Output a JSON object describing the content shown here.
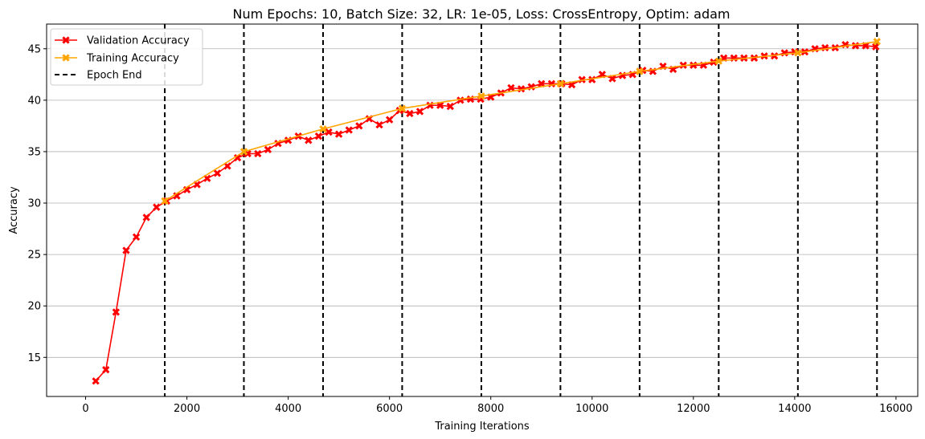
{
  "chart_data": {
    "type": "line",
    "title": "Num Epochs: 10, Batch Size: 32, LR: 1e-05, Loss: CrossEntropy, Optim: adam",
    "xlabel": "Training Iterations",
    "ylabel": "Accuracy",
    "xlim": [
      -770,
      16430
    ],
    "ylim": [
      11.2,
      47.4
    ],
    "xticks": [
      0,
      2000,
      4000,
      6000,
      8000,
      10000,
      12000,
      14000,
      16000
    ],
    "yticks": [
      15,
      20,
      25,
      30,
      35,
      40,
      45
    ],
    "grid": "y",
    "legend_position": "top-left",
    "series": [
      {
        "name": "Validation Accuracy",
        "color": "#ff0000",
        "marker": "x",
        "x": [
          200,
          400,
          600,
          800,
          1000,
          1200,
          1400,
          1600,
          1800,
          2000,
          2200,
          2400,
          2600,
          2800,
          3000,
          3200,
          3400,
          3600,
          3800,
          4000,
          4200,
          4400,
          4600,
          4800,
          5000,
          5200,
          5400,
          5600,
          5800,
          6000,
          6200,
          6400,
          6600,
          6800,
          7000,
          7200,
          7400,
          7600,
          7800,
          8000,
          8200,
          8400,
          8600,
          8800,
          9000,
          9200,
          9400,
          9600,
          9800,
          10000,
          10200,
          10400,
          10600,
          10800,
          11000,
          11200,
          11400,
          11600,
          11800,
          12000,
          12200,
          12400,
          12600,
          12800,
          13000,
          13200,
          13400,
          13600,
          13800,
          14000,
          14200,
          14400,
          14600,
          14800,
          15000,
          15200,
          15400,
          15600
        ],
        "y": [
          12.7,
          13.8,
          19.4,
          25.4,
          26.7,
          28.6,
          29.6,
          30.2,
          30.7,
          31.3,
          31.8,
          32.4,
          32.9,
          33.6,
          34.4,
          34.8,
          34.8,
          35.2,
          35.8,
          36.1,
          36.5,
          36.1,
          36.5,
          36.9,
          36.7,
          37.1,
          37.5,
          38.2,
          37.6,
          38.1,
          39.0,
          38.7,
          38.9,
          39.5,
          39.5,
          39.4,
          40.0,
          40.1,
          40.1,
          40.3,
          40.7,
          41.2,
          41.1,
          41.3,
          41.6,
          41.6,
          41.6,
          41.5,
          42.0,
          42.0,
          42.5,
          42.1,
          42.4,
          42.5,
          42.9,
          42.8,
          43.3,
          43.0,
          43.4,
          43.4,
          43.4,
          43.7,
          44.1,
          44.1,
          44.1,
          44.1,
          44.3,
          44.3,
          44.6,
          44.7,
          44.7,
          45.0,
          45.1,
          45.1,
          45.4,
          45.3,
          45.3,
          45.2
        ]
      },
      {
        "name": "Training Accuracy",
        "color": "#ffa500",
        "marker": "x",
        "x": [
          1563,
          3125,
          4688,
          6250,
          7813,
          9375,
          10938,
          12500,
          14063,
          15625
        ],
        "y": [
          30.2,
          35.0,
          37.2,
          39.2,
          40.4,
          41.6,
          42.8,
          43.8,
          44.6,
          45.7
        ]
      }
    ],
    "epoch_end_lines": {
      "name": "Epoch End",
      "color": "#000000",
      "style": "dashed",
      "x": [
        1563,
        3125,
        4688,
        6250,
        7813,
        9375,
        10938,
        12500,
        14063,
        15625
      ]
    }
  }
}
